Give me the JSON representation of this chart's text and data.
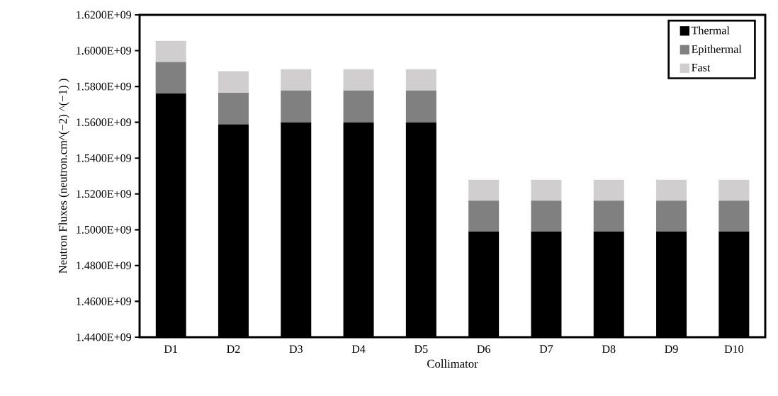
{
  "chart_data": {
    "type": "bar",
    "stacked": true,
    "xlabel": "Collimator",
    "ylabel": "Neutron Fluxes  (neutron.cm^(−2) ^(−1) )",
    "categories": [
      "D1",
      "D2",
      "D3",
      "D4",
      "D5",
      "D6",
      "D7",
      "D8",
      "D9",
      "D10"
    ],
    "series": [
      {
        "name": "Thermal",
        "color": "#000000",
        "values": [
          1576100000,
          1558900000,
          1560000000,
          1560000000,
          1560000000,
          1499000000,
          1499000000,
          1499000000,
          1499000000,
          1499000000
        ]
      },
      {
        "name": "Epithermal",
        "color": "#808080",
        "base": [
          1576100000,
          1558900000,
          1560000000,
          1560000000,
          1560000000,
          1499000000,
          1499000000,
          1499000000,
          1499000000,
          1499000000
        ],
        "values": [
          17600000,
          17600000,
          17800000,
          17800000,
          17800000,
          17200000,
          17200000,
          17200000,
          17200000,
          17200000
        ]
      },
      {
        "name": "Fast",
        "color": "#d0cece",
        "base": [
          1593700000,
          1576500000,
          1577800000,
          1577800000,
          1577800000,
          1516200000,
          1516200000,
          1516200000,
          1516200000,
          1516200000
        ],
        "values": [
          11800000,
          12000000,
          11800000,
          11800000,
          11800000,
          11700000,
          11700000,
          11700000,
          11700000,
          11700000
        ]
      }
    ],
    "ylim": [
      1440000000,
      1620000000
    ],
    "yticks": [
      {
        "value": 1440000000,
        "label": "1.4400E+09"
      },
      {
        "value": 1460000000,
        "label": "1.4600E+09"
      },
      {
        "value": 1480000000,
        "label": "1.4800E+09"
      },
      {
        "value": 1500000000,
        "label": "1.5000E+09"
      },
      {
        "value": 1520000000,
        "label": "1.5200E+09"
      },
      {
        "value": 1540000000,
        "label": "1.5400E+09"
      },
      {
        "value": 1560000000,
        "label": "1.5600E+09"
      },
      {
        "value": 1580000000,
        "label": "1.5800E+09"
      },
      {
        "value": 1600000000,
        "label": "1.6000E+09"
      },
      {
        "value": 1620000000,
        "label": "1.6200E+09"
      }
    ],
    "grid": false,
    "legend": "top right"
  }
}
